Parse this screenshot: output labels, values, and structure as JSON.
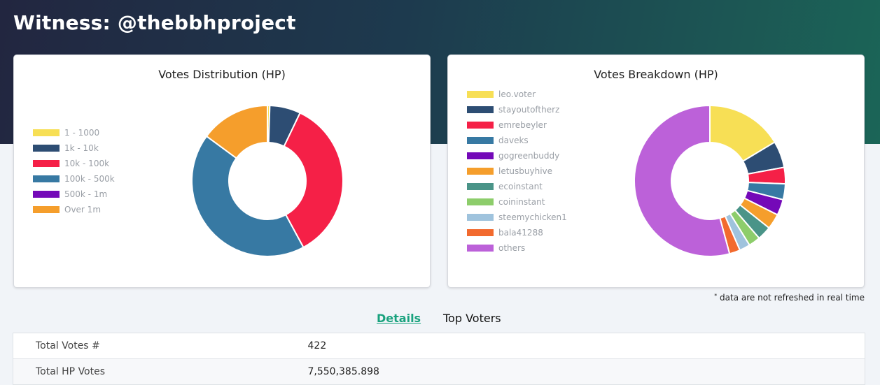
{
  "header": {
    "title": "Witness: @thebbhproject"
  },
  "distribution": {
    "title": "Votes Distribution (HP)",
    "slices": [
      {
        "label": "1 - 1000",
        "value": 0.5,
        "color": "#f7df55"
      },
      {
        "label": "1k - 10k",
        "value": 6.6,
        "color": "#2d4d73"
      },
      {
        "label": "10k - 100k",
        "value": 35.0,
        "color": "#f52047"
      },
      {
        "label": "100k - 500k",
        "value": 43.0,
        "color": "#3779a3"
      },
      {
        "label": "500k - 1m",
        "value": 0.0,
        "color": "#7409b8"
      },
      {
        "label": "Over 1m",
        "value": 14.9,
        "color": "#f59e2c"
      }
    ]
  },
  "breakdown": {
    "title": "Votes Breakdown (HP)",
    "slices": [
      {
        "label": "leo.voter",
        "value": 16.4,
        "color": "#f7df55"
      },
      {
        "label": "stayoutoftherz",
        "value": 5.7,
        "color": "#2d4d73"
      },
      {
        "label": "emrebeyler",
        "value": 3.5,
        "color": "#f52047"
      },
      {
        "label": "daveks",
        "value": 3.4,
        "color": "#3779a3"
      },
      {
        "label": "gogreenbuddy",
        "value": 3.4,
        "color": "#7409b8"
      },
      {
        "label": "letusbuyhive",
        "value": 3.3,
        "color": "#f59e2c"
      },
      {
        "label": "ecoinstant",
        "value": 3.0,
        "color": "#4a9488"
      },
      {
        "label": "coininstant",
        "value": 2.5,
        "color": "#8dcd6b"
      },
      {
        "label": "steemychicken1",
        "value": 2.3,
        "color": "#9fc3dd"
      },
      {
        "label": "bala41288",
        "value": 2.3,
        "color": "#f26a2e"
      },
      {
        "label": "others",
        "value": 54.2,
        "color": "#bc61d9"
      }
    ]
  },
  "footnote": "data are not refreshed in real time",
  "tabs": {
    "details": "Details",
    "top_voters": "Top Voters"
  },
  "details": [
    {
      "key": "Total Votes #",
      "value": "422"
    },
    {
      "key": "Total HP Votes",
      "value": "7,550,385.898"
    }
  ]
}
